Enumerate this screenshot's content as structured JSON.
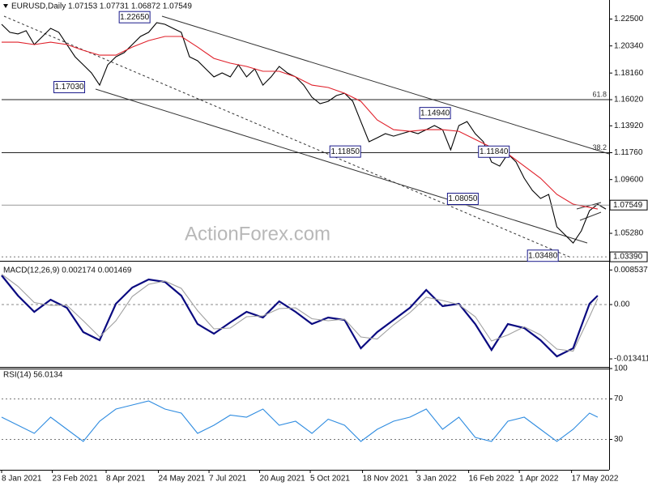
{
  "chart_data": [
    {
      "type": "line",
      "title": "EURUSD,Daily 1.07153 1.07731 1.06872 1.07549",
      "xlim": [
        0,
        372
      ],
      "ylim": [
        1.0307,
        1.2403
      ],
      "yticks": [
        {
          "value": 1.225,
          "label": "1.22500"
        },
        {
          "value": 1.2034,
          "label": "1.20340"
        },
        {
          "value": 1.1816,
          "label": "1.18160"
        },
        {
          "value": 1.1602,
          "label": "1.16020"
        },
        {
          "value": 1.1392,
          "label": "1.13920"
        },
        {
          "value": 1.1176,
          "label": "1.11760"
        },
        {
          "value": 1.096,
          "label": "1.09600"
        },
        {
          "value": 1.0528,
          "label": "1.05280"
        }
      ],
      "series": [
        {
          "color": "#000000",
          "x": [
            0,
            5,
            10,
            15,
            20,
            25,
            30,
            35,
            40,
            45,
            50,
            55,
            60,
            65,
            70,
            75,
            80,
            85,
            90,
            95,
            100,
            105,
            110,
            115,
            120,
            125,
            130,
            135,
            140,
            145,
            150,
            155,
            160,
            165,
            170,
            175,
            180,
            185,
            190,
            195,
            200,
            205,
            210,
            215,
            220,
            225,
            230,
            235,
            240,
            245,
            250,
            255,
            260,
            265,
            270,
            275,
            280,
            285,
            290,
            295,
            300,
            305,
            310,
            315,
            320,
            325,
            330,
            335,
            340,
            345,
            350,
            355,
            360,
            365,
            370
          ],
          "values": [
            1.2208,
            1.2143,
            1.213,
            1.2156,
            1.2045,
            1.211,
            1.2175,
            1.2143,
            1.2045,
            1.1947,
            1.1882,
            1.1817,
            1.1719,
            1.1882,
            1.1947,
            1.198,
            1.2045,
            1.211,
            1.2143,
            1.2221,
            1.2208,
            1.2175,
            1.2143,
            1.1947,
            1.1915,
            1.185,
            1.1785,
            1.1817,
            1.1785,
            1.1882,
            1.1785,
            1.185,
            1.1719,
            1.1785,
            1.1869,
            1.1817,
            1.1785,
            1.1719,
            1.1622,
            1.157,
            1.1589,
            1.1635,
            1.1654,
            1.1589,
            1.1426,
            1.1264,
            1.1296,
            1.1329,
            1.1309,
            1.1329,
            1.1348,
            1.1329,
            1.1361,
            1.1394,
            1.1361,
            1.1199,
            1.1394,
            1.1426,
            1.1329,
            1.1264,
            1.1101,
            1.1068,
            1.1166,
            1.1101,
            1.0971,
            1.0873,
            1.0808,
            1.0841,
            1.058,
            1.0515,
            1.045,
            1.0548,
            1.071,
            1.0762,
            1.0723
          ]
        },
        {
          "color": "#e0202a",
          "x": [
            0,
            10,
            20,
            30,
            40,
            50,
            60,
            70,
            80,
            90,
            100,
            110,
            120,
            130,
            140,
            150,
            160,
            170,
            180,
            190,
            200,
            210,
            220,
            230,
            240,
            250,
            260,
            270,
            280,
            290,
            300,
            310,
            320,
            330,
            340,
            350,
            360,
            365
          ],
          "values": [
            1.2064,
            1.2064,
            1.2045,
            1.2064,
            1.2045,
            1.1999,
            1.196,
            1.196,
            1.2025,
            1.2077,
            1.211,
            1.211,
            1.2025,
            1.1934,
            1.1895,
            1.1869,
            1.183,
            1.183,
            1.1785,
            1.1719,
            1.17,
            1.1654,
            1.1589,
            1.1439,
            1.1361,
            1.1348,
            1.1361,
            1.1361,
            1.1348,
            1.1283,
            1.1218,
            1.1166,
            1.1068,
            1.0971,
            1.0841,
            1.0762,
            1.0736,
            1.0723
          ]
        }
      ],
      "last": {
        "value": 1.07549,
        "label": "1.07549"
      },
      "levels": [
        {
          "value": 1.1602,
          "label": "61.8",
          "style": "solid"
        },
        {
          "value": 1.1176,
          "label": "38.2",
          "style": "solid"
        },
        {
          "value": 1.0339,
          "label": "1.03390",
          "style": "dotted"
        }
      ],
      "callouts": [
        {
          "x": 72,
          "value": 1.2265,
          "label": "1.22650"
        },
        {
          "x": 32,
          "value": 1.1703,
          "label": "1.17030"
        },
        {
          "x": 256,
          "value": 1.1494,
          "label": "1.14940"
        },
        {
          "x": 201,
          "value": 1.1185,
          "label": "1.11850"
        },
        {
          "x": 292,
          "value": 1.1184,
          "label": "1.11840"
        },
        {
          "x": 273,
          "value": 1.0805,
          "label": "1.08050"
        },
        {
          "x": 322,
          "value": 1.0348,
          "label": "1.03480"
        }
      ],
      "watermark": "ActionForex.com"
    },
    {
      "type": "line",
      "title": "MACD(12,26,9) 0.002174 0.001469",
      "xlim": [
        0,
        372
      ],
      "ylim": [
        -0.0152,
        0.0106
      ],
      "yticks": [
        0.008537,
        {
          "value": 0,
          "label": "0.00"
        },
        -0.013411
      ],
      "zero_line": true,
      "series": [
        {
          "color": "#0a0a80",
          "x": [
            0,
            10,
            20,
            30,
            40,
            50,
            60,
            70,
            80,
            90,
            100,
            110,
            120,
            130,
            140,
            150,
            160,
            170,
            180,
            190,
            200,
            210,
            220,
            230,
            240,
            250,
            260,
            270,
            280,
            290,
            300,
            310,
            320,
            330,
            340,
            350,
            360,
            365
          ],
          "values": [
            0.0072,
            0.0022,
            -0.0018,
            0.0012,
            -0.0008,
            -0.0068,
            -0.0088,
            0.0002,
            0.0042,
            0.0062,
            0.0056,
            0.0022,
            -0.0048,
            -0.0072,
            -0.0044,
            -0.0018,
            -0.0032,
            0.0008,
            -0.0018,
            -0.0048,
            -0.0032,
            -0.0038,
            -0.0108,
            -0.0068,
            -0.0038,
            -0.0008,
            0.0036,
            -0.0004,
            0.0002,
            -0.0048,
            -0.0112,
            -0.0048,
            -0.0058,
            -0.0088,
            -0.0128,
            -0.0108,
            0.0002,
            0.0022
          ]
        },
        {
          "color": "#a0a0a0",
          "x": [
            0,
            10,
            20,
            30,
            40,
            50,
            60,
            70,
            80,
            90,
            100,
            110,
            120,
            130,
            140,
            150,
            160,
            170,
            180,
            190,
            200,
            210,
            220,
            230,
            240,
            250,
            260,
            270,
            280,
            290,
            300,
            310,
            320,
            330,
            340,
            350,
            360,
            365
          ],
          "values": [
            0.0075,
            0.0045,
            0.0005,
            -0.0002,
            -0.0002,
            -0.004,
            -0.008,
            -0.004,
            0.002,
            0.005,
            0.0058,
            0.004,
            -0.0015,
            -0.006,
            -0.0058,
            -0.003,
            -0.0028,
            -0.001,
            -0.0008,
            -0.0035,
            -0.004,
            -0.0036,
            -0.008,
            -0.0085,
            -0.005,
            -0.002,
            0.0018,
            0.001,
            0,
            -0.003,
            -0.009,
            -0.0075,
            -0.0055,
            -0.0075,
            -0.011,
            -0.0115,
            -0.003,
            0.0015
          ]
        }
      ]
    },
    {
      "type": "line",
      "title": "RSI(14) 56.0134",
      "xlim": [
        0,
        372
      ],
      "ylim": [
        0,
        100
      ],
      "yticks": [
        100,
        70,
        30
      ],
      "levels": [
        {
          "value": 70,
          "style": "dotted"
        },
        {
          "value": 30,
          "style": "dotted"
        }
      ],
      "series": [
        {
          "color": "#2f8ce0",
          "x": [
            0,
            10,
            20,
            30,
            40,
            50,
            60,
            70,
            80,
            90,
            100,
            110,
            120,
            130,
            140,
            150,
            160,
            170,
            180,
            190,
            200,
            210,
            220,
            230,
            240,
            250,
            260,
            270,
            280,
            290,
            300,
            310,
            320,
            330,
            340,
            350,
            360,
            365
          ],
          "values": [
            52,
            44,
            36,
            52,
            40,
            28,
            48,
            60,
            64,
            68,
            60,
            56,
            36,
            44,
            54,
            52,
            60,
            44,
            48,
            36,
            50,
            44,
            28,
            40,
            48,
            52,
            60,
            40,
            52,
            32,
            28,
            48,
            52,
            40,
            28,
            40,
            56,
            52
          ]
        }
      ],
      "xticks": [
        {
          "value": 0,
          "label": "8 Jan 2021"
        },
        {
          "value": 31,
          "label": "23 Feb 2021"
        },
        {
          "value": 64,
          "label": "8 Apr 2021"
        },
        {
          "value": 96,
          "label": "24 May 2021"
        },
        {
          "value": 127,
          "label": "7 Jul 2021"
        },
        {
          "value": 158,
          "label": "20 Aug 2021"
        },
        {
          "value": 189,
          "label": "5 Oct 2021"
        },
        {
          "value": 221,
          "label": "18 Nov 2021"
        },
        {
          "value": 254,
          "label": "3 Jan 2022"
        },
        {
          "value": 286,
          "label": "16 Feb 2022"
        },
        {
          "value": 317,
          "label": "1 Apr 2022"
        },
        {
          "value": 349,
          "label": "17 May 2022"
        }
      ]
    }
  ]
}
